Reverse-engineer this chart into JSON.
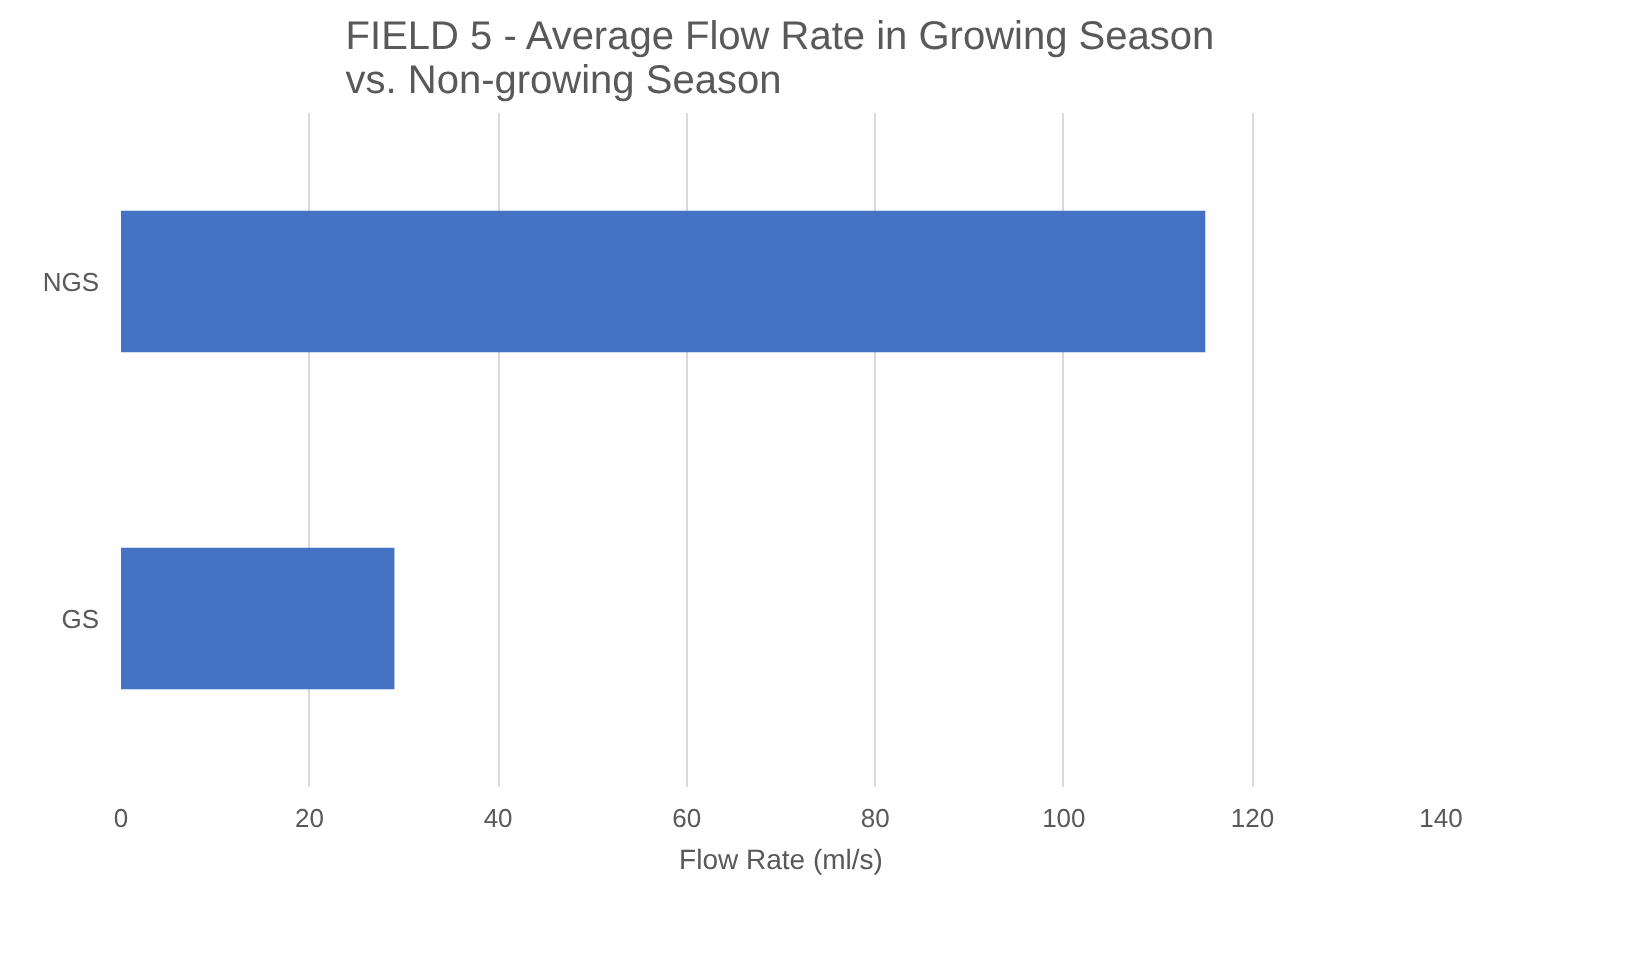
{
  "chart_data": {
    "type": "bar",
    "orientation": "horizontal",
    "title": "FIELD 5 - Average Flow Rate in Growing Season\nvs. Non-growing Season",
    "xlabel": "Flow Rate (ml/s)",
    "categories": [
      "NGS",
      "GS"
    ],
    "values": [
      115,
      29
    ],
    "color": "#4472c4",
    "xlim": [
      0,
      140
    ],
    "xticks": [
      0,
      20,
      40,
      60,
      80,
      100,
      120,
      140
    ],
    "grid": "x"
  }
}
